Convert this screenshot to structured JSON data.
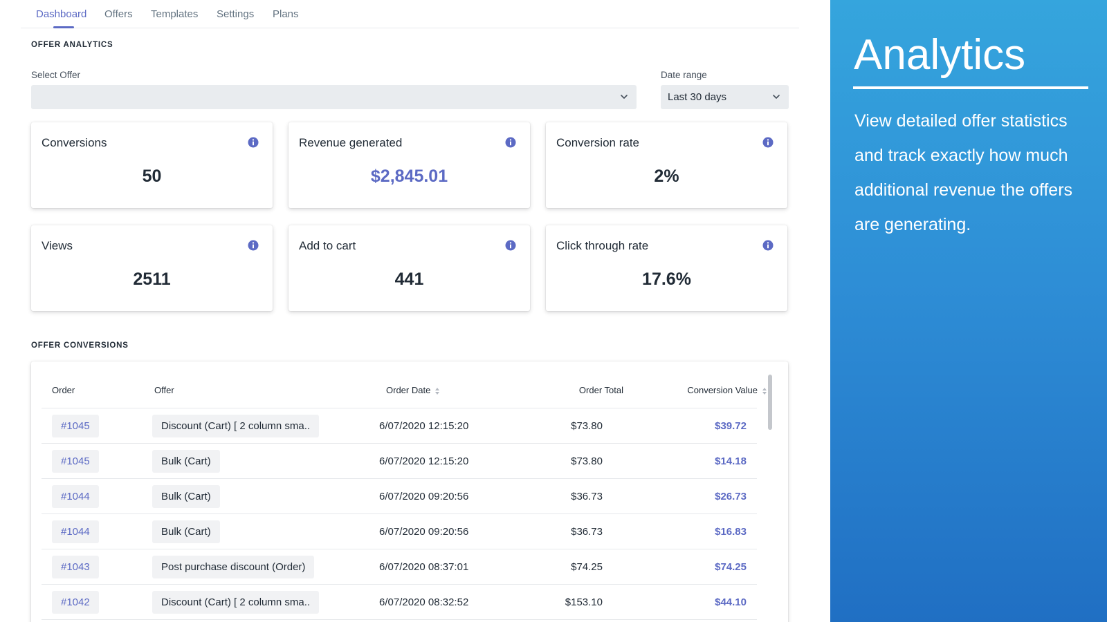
{
  "nav": {
    "tabs": [
      {
        "label": "Dashboard",
        "active": true
      },
      {
        "label": "Offers"
      },
      {
        "label": "Templates"
      },
      {
        "label": "Settings"
      },
      {
        "label": "Plans"
      }
    ]
  },
  "analytics": {
    "section_title": "OFFER ANALYTICS",
    "select_offer": {
      "label": "Select Offer",
      "value": ""
    },
    "date_range": {
      "label": "Date range",
      "value": "Last 30 days"
    },
    "cards": [
      {
        "title": "Conversions",
        "value": "50"
      },
      {
        "title": "Revenue generated",
        "value": "$2,845.01"
      },
      {
        "title": "Conversion rate",
        "value": "2%"
      },
      {
        "title": "Views",
        "value": "2511"
      },
      {
        "title": "Add to cart",
        "value": "441"
      },
      {
        "title": "Click through rate",
        "value": "17.6%"
      }
    ]
  },
  "conversions": {
    "section_title": "OFFER CONVERSIONS",
    "columns": [
      "Order",
      "Offer",
      "Order Date",
      "Order Total",
      "Conversion Value"
    ],
    "rows": [
      {
        "order": "#1045",
        "offer": "Discount (Cart) [ 2 column sma..",
        "date": "6/07/2020 12:15:20",
        "total": "$73.80",
        "conversion": "$39.72"
      },
      {
        "order": "#1045",
        "offer": "Bulk (Cart)",
        "date": "6/07/2020 12:15:20",
        "total": "$73.80",
        "conversion": "$14.18"
      },
      {
        "order": "#1044",
        "offer": "Bulk (Cart)",
        "date": "6/07/2020 09:20:56",
        "total": "$36.73",
        "conversion": "$26.73"
      },
      {
        "order": "#1044",
        "offer": "Bulk (Cart)",
        "date": "6/07/2020 09:20:56",
        "total": "$36.73",
        "conversion": "$16.83"
      },
      {
        "order": "#1043",
        "offer": "Post purchase discount (Order)",
        "date": "6/07/2020 08:37:01",
        "total": "$74.25",
        "conversion": "$74.25"
      },
      {
        "order": "#1042",
        "offer": "Discount (Cart) [ 2 column sma..",
        "date": "6/07/2020 08:32:52",
        "total": "$153.10",
        "conversion": "$44.10"
      }
    ]
  },
  "promo": {
    "title": "Analytics",
    "description": "View detailed offer statistics and track exactly how much additional revenue the offers are generating."
  },
  "colors": {
    "accent": "#5c6ac4",
    "promo_gradient_top": "#35a5dd",
    "promo_gradient_bottom": "#206fc3",
    "pill_bg": "#f1f2f4",
    "select_bg": "#e9ecef"
  },
  "icons": {
    "info": "info-icon",
    "dropdown": "chevron-down-icon",
    "sort": "sort-icon"
  }
}
